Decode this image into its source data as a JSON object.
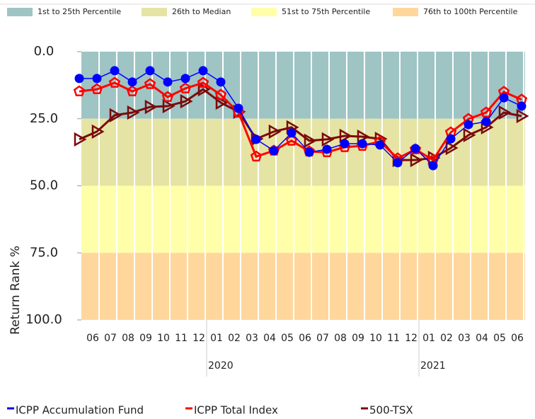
{
  "chart_data": {
    "type": "line",
    "y_label": "Return Rank %",
    "categories": [
      null,
      "06",
      "07",
      "08",
      "09",
      "10",
      "11",
      "12",
      "01",
      "02",
      "03",
      "04",
      "05",
      "06",
      "07",
      "08",
      "09",
      "10",
      "11",
      "12",
      "01",
      "02",
      "03",
      "04",
      "05",
      "06"
    ],
    "year_labels": [
      null,
      null,
      null,
      null,
      null,
      null,
      null,
      null,
      "2020",
      null,
      null,
      null,
      null,
      null,
      null,
      null,
      null,
      null,
      null,
      null,
      "2021",
      null,
      null,
      null,
      null,
      null
    ],
    "ylim": [
      0,
      100
    ],
    "y_inverted": true,
    "yticks": [
      {
        "value": 0,
        "label": "0.0"
      },
      {
        "value": 25,
        "label": "25.0"
      },
      {
        "value": 50,
        "label": "50.0"
      },
      {
        "value": 75,
        "label": "75.0"
      },
      {
        "value": 100,
        "label": "100.0"
      }
    ],
    "bands": [
      {
        "name": "1st to 25th Percentile",
        "from": 0,
        "to": 25,
        "color": "#9fc4c4"
      },
      {
        "name": "26th to Median",
        "from": 25,
        "to": 50,
        "color": "#e5e4a4"
      },
      {
        "name": "51st to 75th Percentile",
        "from": 50,
        "to": 75,
        "color": "#ffffaa"
      },
      {
        "name": "76th to 100th Percentile",
        "from": 75,
        "to": 100,
        "color": "#ffd79c"
      }
    ],
    "series": [
      {
        "name": "ICPP Accumulation Fund",
        "color": "#0000ff",
        "marker": "circle",
        "values": [
          10.0,
          10.0,
          7.1,
          11.3,
          7.1,
          11.3,
          10.0,
          7.1,
          11.3,
          21.1,
          32.7,
          36.9,
          30.3,
          37.5,
          36.4,
          34.3,
          34.3,
          34.8,
          41.4,
          36.1,
          42.5,
          32.5,
          27.2,
          26.1,
          17.2,
          20.3
        ]
      },
      {
        "name": "ICPP Total Index",
        "color": "#ff0000",
        "marker": "pentagon",
        "values": [
          14.8,
          14.0,
          11.6,
          14.8,
          12.1,
          16.9,
          13.7,
          11.6,
          16.1,
          22.7,
          39.1,
          36.9,
          33.2,
          37.2,
          37.5,
          35.6,
          35.1,
          33.5,
          39.8,
          36.4,
          40.4,
          30.1,
          25.1,
          22.7,
          15.0,
          17.9
        ]
      },
      {
        "name": "500-TSX",
        "color": "#7b0a0a",
        "marker": "triangle-right",
        "values": [
          32.7,
          29.8,
          23.7,
          22.7,
          20.6,
          20.3,
          18.5,
          14.0,
          19.0,
          22.4,
          32.5,
          29.8,
          28.2,
          33.2,
          32.7,
          31.4,
          31.7,
          32.5,
          40.4,
          40.4,
          39.6,
          35.9,
          31.1,
          28.2,
          22.7,
          24.0
        ]
      }
    ]
  }
}
